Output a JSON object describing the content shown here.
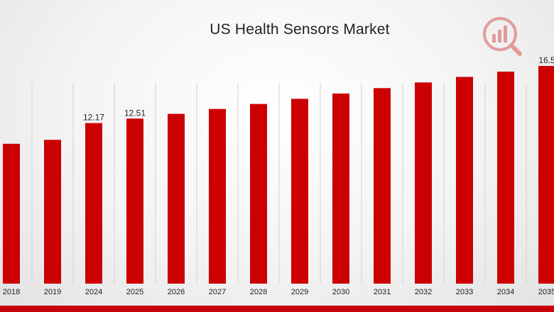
{
  "colors": {
    "bar": "#cc0000",
    "band": "#c8000a",
    "grid": "#d2d2d2"
  },
  "watermark": {
    "icon": "market-research-logo-icon"
  },
  "chart_data": {
    "type": "bar",
    "title": "US Health Sensors Market",
    "xlabel": "",
    "ylabel": "",
    "ylim": [
      0,
      21.5
    ],
    "grid": "vertical",
    "categories": [
      "2018",
      "2019",
      "2024",
      "2025",
      "2026",
      "2027",
      "2028",
      "2029",
      "2030",
      "2031",
      "2032",
      "2033",
      "2034",
      "2035"
    ],
    "values": [
      10.6,
      10.9,
      12.17,
      12.51,
      12.87,
      13.24,
      13.62,
      14.01,
      14.41,
      14.82,
      15.25,
      15.67,
      16.07,
      16.5
    ],
    "data_labels": {
      "2024": "12.17",
      "2025": "12.51",
      "2035": "16.5"
    }
  }
}
